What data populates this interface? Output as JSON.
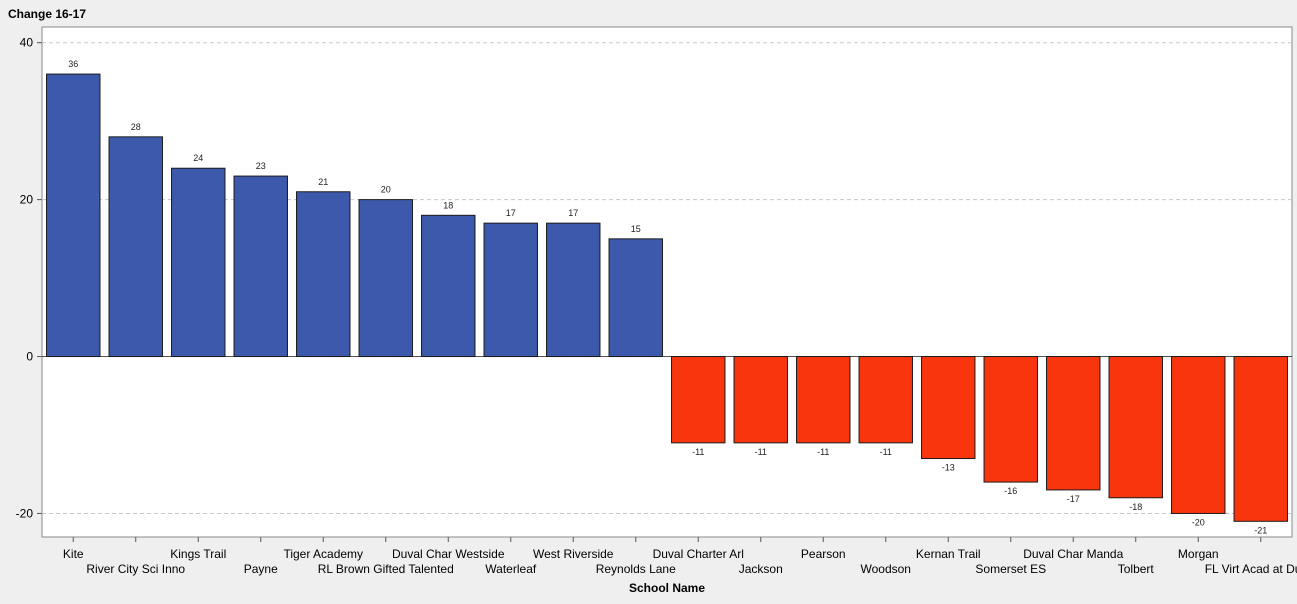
{
  "chart_data": {
    "type": "bar",
    "title": "",
    "ylabel": "Change 16-17",
    "xlabel": "School Name",
    "ylim": [
      -23,
      42
    ],
    "yticks": [
      -20,
      0,
      20,
      40
    ],
    "grid": true,
    "categories": [
      "Kite",
      "River City Sci Inno",
      "Kings Trail",
      "Payne",
      "Tiger Academy",
      "RL Brown Gifted Talented",
      "Duval Char Westside",
      "Waterleaf",
      "West Riverside",
      "Reynolds Lane",
      "Duval Charter Arl",
      "Jackson",
      "Pearson",
      "Woodson",
      "Kernan Trail",
      "Somerset ES",
      "Duval Char Manda",
      "Tolbert",
      "Morgan",
      "FL Virt Acad at Duval"
    ],
    "values": [
      36,
      28,
      24,
      23,
      21,
      20,
      18,
      17,
      17,
      15,
      -11,
      -11,
      -11,
      -11,
      -13,
      -16,
      -17,
      -18,
      -20,
      -21
    ],
    "colors": {
      "positive": "#3d59ac",
      "negative": "#f8350d"
    }
  }
}
